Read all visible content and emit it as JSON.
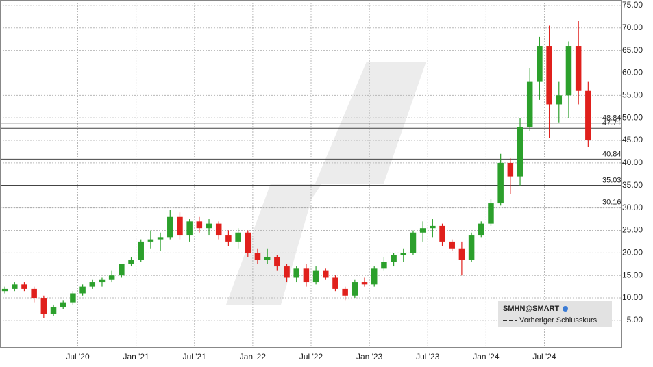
{
  "chart_data": {
    "type": "candlestick",
    "name": "SMHN@SMART",
    "previous_close_label": "Vorheriger Schlusskurs",
    "up_color": "#2ca02c",
    "down_color": "#e0201c",
    "grid": true,
    "x": [
      "2019-11",
      "2019-12",
      "2020-01",
      "2020-02",
      "2020-03",
      "2020-04",
      "2020-05",
      "2020-06",
      "2020-07",
      "2020-08",
      "2020-09",
      "2020-10",
      "2020-11",
      "2020-12",
      "2021-01",
      "2021-02",
      "2021-03",
      "2021-04",
      "2021-05",
      "2021-06",
      "2021-07",
      "2021-08",
      "2021-09",
      "2021-10",
      "2021-11",
      "2021-12",
      "2022-01",
      "2022-02",
      "2022-03",
      "2022-04",
      "2022-05",
      "2022-06",
      "2022-07",
      "2022-08",
      "2022-09",
      "2022-10",
      "2022-11",
      "2022-12",
      "2023-01",
      "2023-02",
      "2023-03",
      "2023-04",
      "2023-05",
      "2023-06",
      "2023-07",
      "2023-08",
      "2023-09",
      "2023-10",
      "2023-11",
      "2023-12",
      "2024-01",
      "2024-02",
      "2024-03",
      "2024-04",
      "2024-05",
      "2024-06",
      "2024-07",
      "2024-08",
      "2024-09",
      "2024-10",
      "2024-11"
    ],
    "open": [
      11.5,
      12,
      13,
      12,
      10,
      6.5,
      8,
      9,
      11,
      12.5,
      13.5,
      14,
      15,
      17.5,
      18.5,
      22.5,
      23,
      23.5,
      28,
      24,
      27,
      25.5,
      26.5,
      24,
      22.5,
      24.5,
      20,
      18.5,
      19,
      17,
      14.5,
      16.5,
      13.5,
      16,
      14.5,
      12,
      10.5,
      13.5,
      13,
      16.5,
      18,
      19.5,
      20,
      24.5,
      25.5,
      26,
      22.5,
      21,
      18.5,
      24,
      26.5,
      31,
      40,
      37,
      48,
      58,
      66,
      53,
      55,
      66,
      56
    ],
    "high": [
      12.5,
      13.5,
      13.5,
      12.5,
      10.5,
      8.5,
      9.5,
      11.5,
      13,
      14,
      14.5,
      16,
      17.5,
      19,
      23,
      25,
      24.5,
      29.5,
      29,
      27.5,
      28,
      27.5,
      27,
      25,
      25.5,
      25,
      21,
      21,
      19.5,
      17.5,
      17,
      17.5,
      17,
      16.5,
      15,
      12.5,
      14,
      14.5,
      17,
      19,
      20,
      21,
      25,
      27,
      27.5,
      26.5,
      23,
      22.5,
      24.5,
      27,
      32,
      42,
      41,
      50,
      61,
      68,
      70.5,
      58,
      67,
      71.5,
      58
    ],
    "low": [
      11,
      11.5,
      11.5,
      9,
      5.5,
      6,
      7.5,
      8.5,
      10.5,
      12,
      12.5,
      13.5,
      14.5,
      17,
      18,
      21,
      20.5,
      23,
      23,
      22.5,
      24.5,
      24,
      23,
      21.5,
      21,
      19,
      17.5,
      17.5,
      16,
      13.5,
      13.5,
      12.5,
      13,
      14,
      11.5,
      9.5,
      10,
      12.5,
      12.5,
      16,
      17,
      18,
      19.5,
      22.5,
      23.5,
      21.5,
      20.5,
      15,
      18,
      23.5,
      26,
      30.5,
      33,
      35,
      47,
      54,
      45.5,
      49,
      50,
      53,
      43.5
    ],
    "close": [
      12,
      13,
      12,
      10,
      6.5,
      8,
      9,
      11,
      12.5,
      13.5,
      14,
      15,
      17.5,
      18.5,
      22.5,
      23,
      23.5,
      28,
      24,
      27,
      25.5,
      26.5,
      24,
      22.5,
      24.5,
      20,
      18.5,
      19,
      17,
      14.5,
      16.5,
      13.5,
      16,
      14.5,
      12,
      10.5,
      13.5,
      13,
      16.5,
      18,
      19.5,
      20,
      24.5,
      25.5,
      26,
      22.5,
      21,
      18.5,
      24,
      26.5,
      31,
      40,
      37,
      48,
      58,
      66,
      53,
      55,
      66,
      56,
      45
    ],
    "xlim": [
      "2019-11",
      "2025-03"
    ],
    "xticks": [
      {
        "value": "2020-07",
        "label": "Jul '20"
      },
      {
        "value": "2021-01",
        "label": "Jan '21"
      },
      {
        "value": "2021-07",
        "label": "Jul '21"
      },
      {
        "value": "2022-01",
        "label": "Jan '22"
      },
      {
        "value": "2022-07",
        "label": "Jul '22"
      },
      {
        "value": "2023-01",
        "label": "Jan '23"
      },
      {
        "value": "2023-07",
        "label": "Jul '23"
      },
      {
        "value": "2024-01",
        "label": "Jan '24"
      },
      {
        "value": "2024-07",
        "label": "Jul '24"
      }
    ],
    "ylim": [
      -1.1,
      76.2
    ],
    "yticks": [
      {
        "value": 5,
        "label": "5.00"
      },
      {
        "value": 10,
        "label": "10.00"
      },
      {
        "value": 15,
        "label": "15.00"
      },
      {
        "value": 20,
        "label": "20.00"
      },
      {
        "value": 25,
        "label": "25.00"
      },
      {
        "value": 30,
        "label": "30.00"
      },
      {
        "value": 35,
        "label": "35.00"
      },
      {
        "value": 40,
        "label": "40.00"
      },
      {
        "value": 45,
        "label": "45.00"
      },
      {
        "value": 50,
        "label": "50.00"
      },
      {
        "value": 55,
        "label": "55.00"
      },
      {
        "value": 60,
        "label": "60.00"
      },
      {
        "value": 65,
        "label": "65.00"
      },
      {
        "value": 70,
        "label": "70.00"
      },
      {
        "value": 75,
        "label": "75.00"
      }
    ],
    "levels": [
      48.84,
      47.71,
      40.84,
      35.03,
      30.16
    ]
  }
}
